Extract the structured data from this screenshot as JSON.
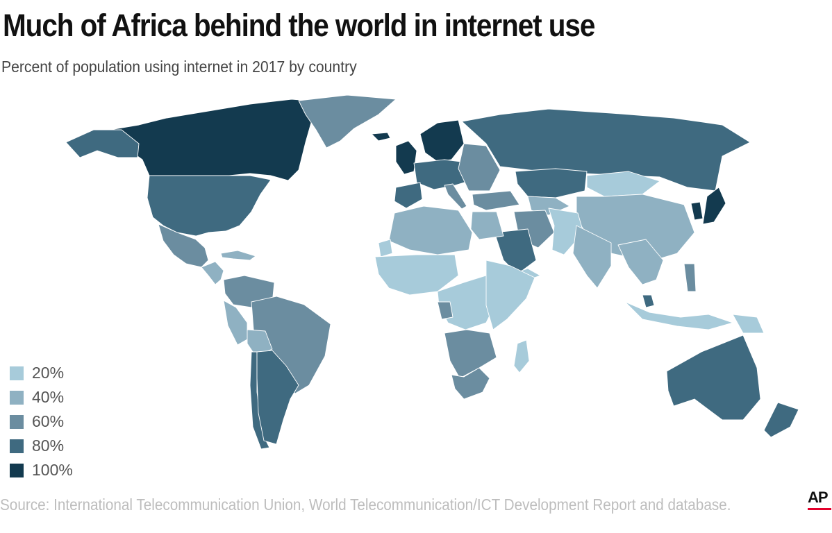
{
  "title": "Much of Africa behind the world in internet use",
  "subtitle": "Percent of population using internet in 2017 by country",
  "legend": [
    {
      "label": "20%",
      "color": "#a7cbda"
    },
    {
      "label": "40%",
      "color": "#8fb1c2"
    },
    {
      "label": "60%",
      "color": "#6b8da0"
    },
    {
      "label": "80%",
      "color": "#3f6a80"
    },
    {
      "label": "100%",
      "color": "#133a4f"
    }
  ],
  "map_regions": [
    {
      "region": "Canada",
      "level": "100%"
    },
    {
      "region": "United States",
      "level": "80%"
    },
    {
      "region": "Alaska",
      "level": "80%"
    },
    {
      "region": "Greenland",
      "level": "60%"
    },
    {
      "region": "Mexico",
      "level": "60%"
    },
    {
      "region": "Central America",
      "level": "40%"
    },
    {
      "region": "Caribbean",
      "level": "40%"
    },
    {
      "region": "Venezuela and Colombia",
      "level": "60%"
    },
    {
      "region": "Brazil",
      "level": "60%"
    },
    {
      "region": "Peru",
      "level": "40%"
    },
    {
      "region": "Bolivia",
      "level": "40%"
    },
    {
      "region": "Chile",
      "level": "80%"
    },
    {
      "region": "Argentina",
      "level": "80%"
    },
    {
      "region": "Iceland",
      "level": "100%"
    },
    {
      "region": "United Kingdom and Ireland",
      "level": "100%"
    },
    {
      "region": "Scandinavia",
      "level": "100%"
    },
    {
      "region": "Western and Central Europe",
      "level": "80%"
    },
    {
      "region": "Iberia",
      "level": "80%"
    },
    {
      "region": "Italy",
      "level": "60%"
    },
    {
      "region": "Eastern Europe",
      "level": "60%"
    },
    {
      "region": "Russia",
      "level": "80%"
    },
    {
      "region": "Kazakhstan",
      "level": "80%"
    },
    {
      "region": "Central Asia",
      "level": "40%"
    },
    {
      "region": "Mongolia",
      "level": "20%"
    },
    {
      "region": "China",
      "level": "40%"
    },
    {
      "region": "Korea",
      "level": "100%"
    },
    {
      "region": "Japan",
      "level": "100%"
    },
    {
      "region": "Turkey",
      "level": "60%"
    },
    {
      "region": "Iran",
      "level": "60%"
    },
    {
      "region": "Afghanistan and Pakistan",
      "level": "20%"
    },
    {
      "region": "India",
      "level": "40%"
    },
    {
      "region": "Saudi Arabia and Gulf",
      "level": "80%"
    },
    {
      "region": "Yemen",
      "level": "20%"
    },
    {
      "region": "Southeast Asia",
      "level": "40%"
    },
    {
      "region": "Malaysia",
      "level": "80%"
    },
    {
      "region": "Indonesia",
      "level": "20%"
    },
    {
      "region": "Philippines",
      "level": "60%"
    },
    {
      "region": "New Guinea",
      "level": "20%"
    },
    {
      "region": "Australia",
      "level": "80%"
    },
    {
      "region": "New Zealand",
      "level": "80%"
    },
    {
      "region": "North Africa",
      "level": "40%"
    },
    {
      "region": "Egypt",
      "level": "40%"
    },
    {
      "region": "Western Sahara",
      "level": "20%"
    },
    {
      "region": "West Africa",
      "level": "20%"
    },
    {
      "region": "Central Africa",
      "level": "20%"
    },
    {
      "region": "East Africa",
      "level": "20%"
    },
    {
      "region": "Gabon",
      "level": "60%"
    },
    {
      "region": "Southern Africa",
      "level": "60%"
    },
    {
      "region": "South Africa",
      "level": "60%"
    },
    {
      "region": "Madagascar",
      "level": "20%"
    }
  ],
  "source": "Source:  International Telecommunication Union, World Telecommunication/ICT Development Report and database.",
  "logo": "AP",
  "logo_underline_color": "#e4002b"
}
